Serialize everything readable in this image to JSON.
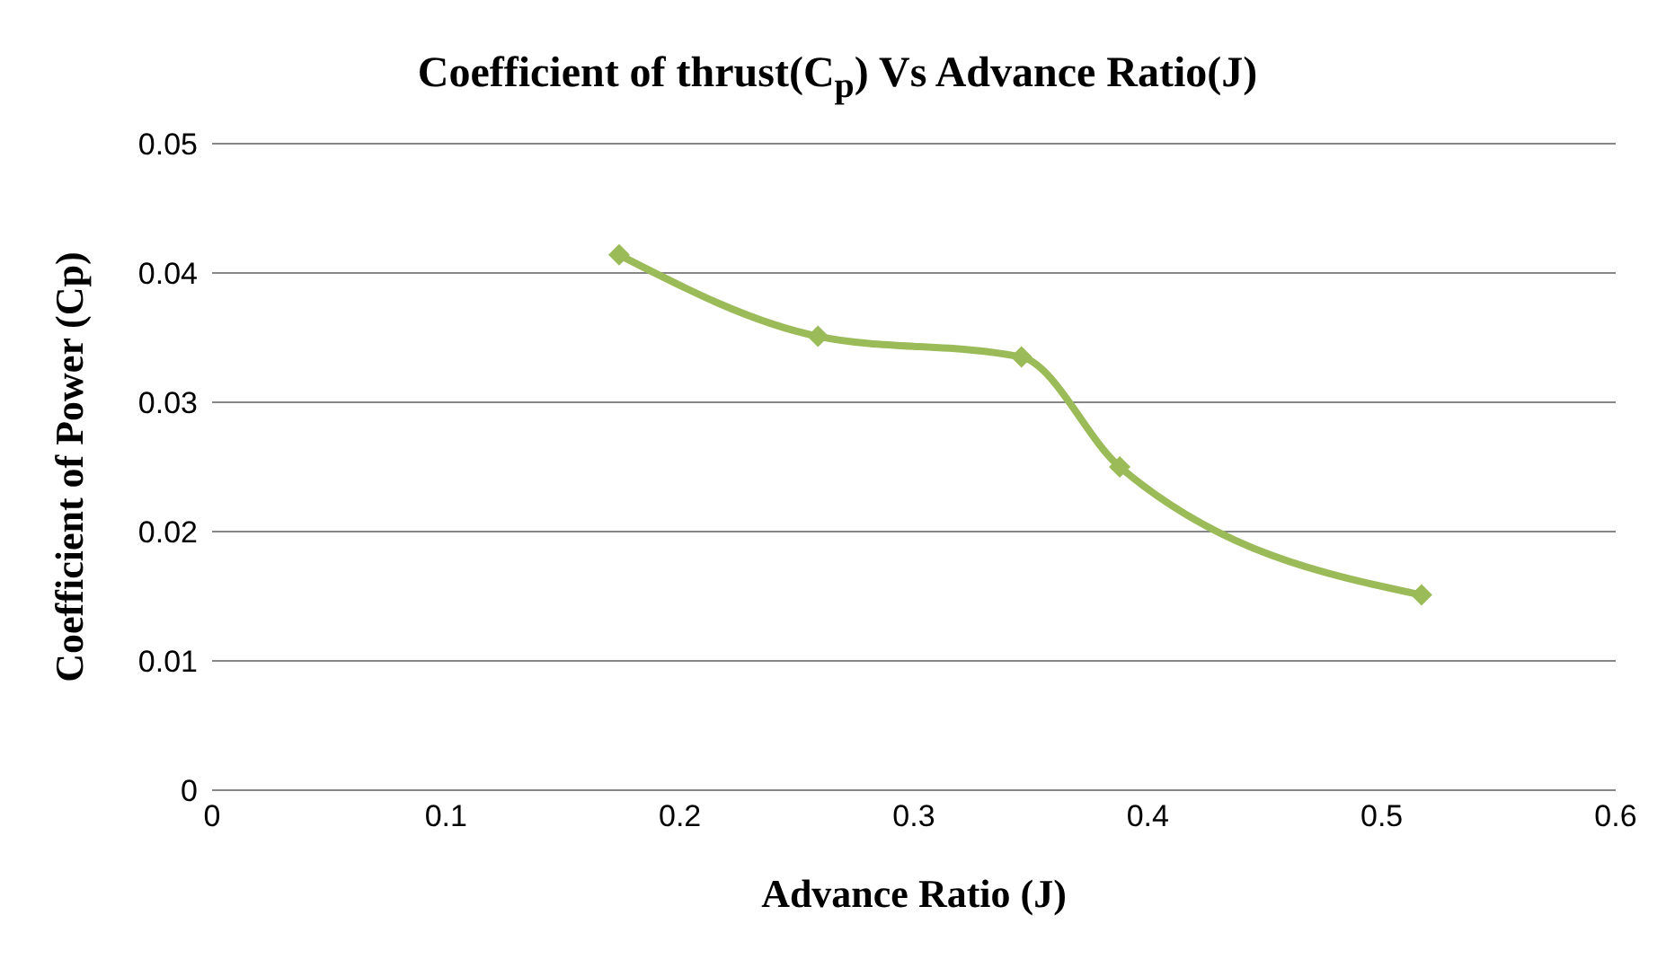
{
  "chart_data": {
    "type": "line",
    "title": "Coefficient of thrust(C$_{p}$) Vs Advance Ratio(J)",
    "xlabel": "Advance Ratio (J)",
    "ylabel": "Coefficient of Power (Cp)",
    "x": [
      0.174,
      0.259,
      0.346,
      0.388,
      0.517
    ],
    "series": [
      {
        "color": "#9bbb59",
        "values": [
          0.0414,
          0.0351,
          0.0335,
          0.025,
          0.0151
        ]
      }
    ],
    "xlim": [
      0,
      0.6
    ],
    "xticks": [
      0,
      0.1,
      0.2,
      0.3,
      0.4,
      0.5,
      0.6
    ],
    "ylim": [
      0,
      0.05
    ],
    "yticks": [
      0,
      0.01,
      0.02,
      0.03,
      0.04,
      0.05
    ],
    "grid": "y",
    "legend": false,
    "marker": "diamond",
    "line_style": "solid"
  }
}
